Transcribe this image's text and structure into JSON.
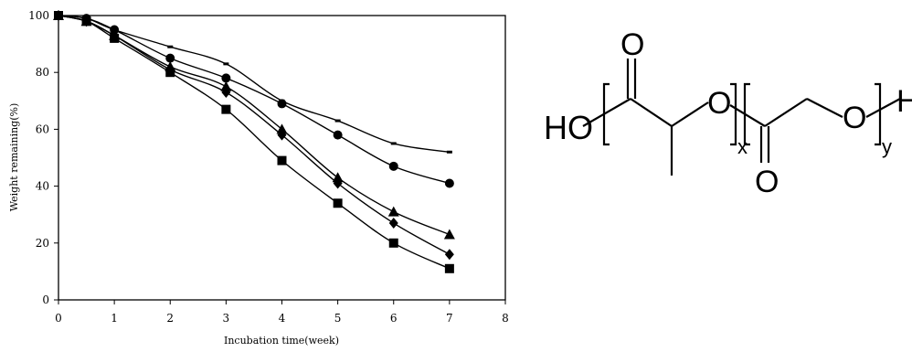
{
  "chart_data": {
    "type": "line",
    "title": "",
    "xlabel": "Incubation time(week)",
    "ylabel": "Weight remaining(%)",
    "xlim": [
      0,
      8
    ],
    "ylim": [
      0,
      100
    ],
    "x_ticks": [
      "0",
      "1",
      "2",
      "3",
      "4",
      "5",
      "6",
      "7",
      "8"
    ],
    "y_ticks": [
      "0",
      "20",
      "40",
      "60",
      "80",
      "100"
    ],
    "grid": false,
    "series": [
      {
        "marker": "dash",
        "x": [
          0,
          0.5,
          1,
          2,
          3,
          4,
          5,
          6,
          7
        ],
        "y": [
          100,
          99,
          95,
          89,
          83,
          70,
          63,
          55,
          52
        ]
      },
      {
        "marker": "circle",
        "x": [
          0,
          0.5,
          1,
          2,
          3,
          4,
          5,
          6,
          7
        ],
        "y": [
          100,
          99,
          95,
          85,
          78,
          69,
          58,
          47,
          41
        ]
      },
      {
        "marker": "triangle",
        "x": [
          0,
          0.5,
          1,
          2,
          3,
          4,
          5,
          6,
          7
        ],
        "y": [
          100,
          98,
          93,
          82,
          75,
          60,
          43,
          31,
          23
        ]
      },
      {
        "marker": "diamond",
        "x": [
          0,
          0.5,
          1,
          2,
          3,
          4,
          5,
          6,
          7
        ],
        "y": [
          100,
          98,
          93,
          81,
          73,
          58,
          41,
          27,
          16
        ]
      },
      {
        "marker": "square",
        "x": [
          0,
          0.5,
          1,
          2,
          3,
          4,
          5,
          6,
          7
        ],
        "y": [
          100,
          98,
          92,
          80,
          67,
          49,
          34,
          20,
          11
        ]
      }
    ]
  },
  "structure": {
    "ho": "HO",
    "carbonyl_o1": "O",
    "ester_o1": "O",
    "sub_x": "x",
    "carbonyl_o2": "O",
    "ester_o2": "O",
    "sub_y": "y",
    "end_h": "H"
  }
}
